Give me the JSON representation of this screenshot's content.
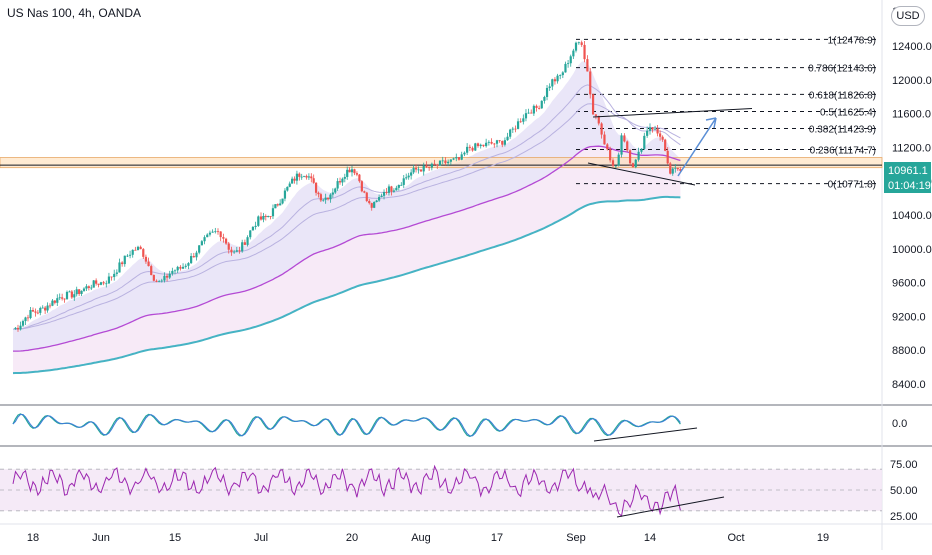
{
  "header": {
    "title": "US Nas 100, 4h, OANDA",
    "currency": "USD"
  },
  "price_axis": {
    "ticks": [
      "12400.0",
      "12000.0",
      "11600.0",
      "11200.0",
      "10800.0",
      "10400.0",
      "10000.0",
      "9600.0",
      "9200.0",
      "8800.0",
      "8400.0"
    ],
    "top_partial": "1",
    "last_price": "10961.1",
    "countdown": "01:04:19",
    "last_price_color": "#26a69a"
  },
  "osc_axis": {
    "ticks": [
      "0.0"
    ]
  },
  "rsi_axis": {
    "ticks": [
      "75.00",
      "50.00",
      "25.00"
    ]
  },
  "time_axis": {
    "ticks": [
      "18",
      "Jun",
      "15",
      "Jul",
      "20",
      "Aug",
      "17",
      "Sep",
      "14",
      "Oct",
      "19"
    ]
  },
  "fib_levels": [
    {
      "label": "1(12478.9)",
      "price": 12478.9
    },
    {
      "label": "0.786(12143.6)",
      "price": 12143.6
    },
    {
      "label": "0.618(11826.8)",
      "price": 11826.8
    },
    {
      "label": "0.5(11625.4)",
      "price": 11625.4
    },
    {
      "label": "0.382(11423.9)",
      "price": 11423.9
    },
    {
      "label": "0.236(11174.7)",
      "price": 11174.7
    },
    {
      "label": "0(10771.8)",
      "price": 10771.8
    }
  ],
  "colors": {
    "up": "#26a69a",
    "down": "#ef5350",
    "slow_ma": "#46b3c4",
    "mid_ma": "#b44ad4",
    "ribbon": "#b9b2e0",
    "zone": "#ffd7a8",
    "rsi": "#9c27b0",
    "osc1": "#26a69a",
    "osc2": "#3d7dd8"
  },
  "chart_data": [
    {
      "type": "candlestick",
      "title": "US Nas 100, 4h, OANDA",
      "ylim": [
        8050,
        12700
      ],
      "date_ticks": [
        "18",
        "Jun",
        "15",
        "Jul",
        "20",
        "Aug",
        "17",
        "Sep",
        "14",
        "Oct",
        "19"
      ],
      "close_path": [
        {
          "date": "May 14",
          "price": 9050
        },
        {
          "date": "May 18",
          "price": 9250
        },
        {
          "date": "May 25",
          "price": 9450
        },
        {
          "date": "Jun 1",
          "price": 9600
        },
        {
          "date": "Jun 8",
          "price": 10000
        },
        {
          "date": "Jun 12",
          "price": 9600
        },
        {
          "date": "Jun 15",
          "price": 9750
        },
        {
          "date": "Jun 23",
          "price": 10200
        },
        {
          "date": "Jun 26",
          "price": 9950
        },
        {
          "date": "Jul 1",
          "price": 10350
        },
        {
          "date": "Jul 10",
          "price": 10900
        },
        {
          "date": "Jul 14",
          "price": 10600
        },
        {
          "date": "Jul 20",
          "price": 10950
        },
        {
          "date": "Jul 24",
          "price": 10500
        },
        {
          "date": "Jul 27",
          "price": 10700
        },
        {
          "date": "Aug 3",
          "price": 10950
        },
        {
          "date": "Aug 10",
          "price": 11050
        },
        {
          "date": "Aug 12",
          "price": 11200
        },
        {
          "date": "Aug 17",
          "price": 11250
        },
        {
          "date": "Aug 24",
          "price": 11650
        },
        {
          "date": "Aug 28",
          "price": 12000
        },
        {
          "date": "Sep 2",
          "price": 12450
        },
        {
          "date": "Sep 3",
          "price": 12100
        },
        {
          "date": "Sep 4",
          "price": 11600
        },
        {
          "date": "Sep 8",
          "price": 10950
        },
        {
          "date": "Sep 9",
          "price": 11350
        },
        {
          "date": "Sep 11",
          "price": 11000
        },
        {
          "date": "Sep 14",
          "price": 11450
        },
        {
          "date": "Sep 16",
          "price": 11350
        },
        {
          "date": "Sep 18",
          "price": 10900
        },
        {
          "date": "Sep 20",
          "price": 10960
        }
      ],
      "last_price": 10961.1,
      "fib_retracement": {
        "high": 12478.9,
        "low": 10771.8
      },
      "support_zone": [
        10960,
        11080
      ]
    },
    {
      "type": "line",
      "title": "Oscillator",
      "yticks": [
        "0.0"
      ],
      "series": [
        {
          "values": [
            0,
            0.3,
            -0.2,
            0.4,
            -0.3,
            0.2,
            0.1,
            -0.1,
            0.3,
            -0.5,
            -0.2,
            0.4,
            0.2,
            -0.1
          ]
        }
      ]
    },
    {
      "type": "line",
      "title": "RSI",
      "ylim": [
        20,
        80
      ],
      "yticks": [
        "75.00",
        "50.00",
        "25.00"
      ],
      "band": [
        30,
        70
      ],
      "series": [
        {
          "values": [
            55,
            60,
            52,
            65,
            48,
            62,
            58,
            66,
            50,
            60,
            63,
            52,
            72,
            55,
            60,
            30,
            38,
            42,
            47,
            35,
            42
          ]
        }
      ]
    }
  ]
}
